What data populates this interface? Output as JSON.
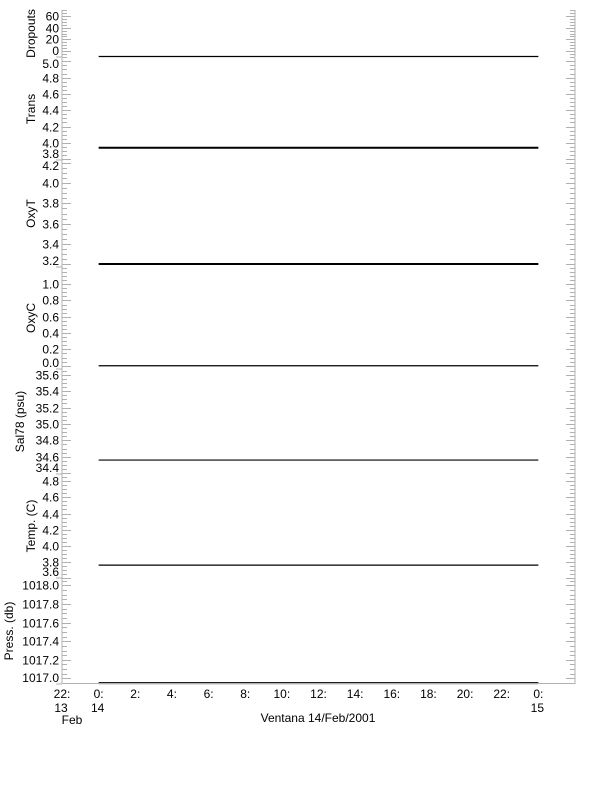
{
  "chart_data": {
    "type": "line",
    "title": "",
    "xlabel": "Ventana 14/Feb/2001",
    "x_range_hours": [
      -2,
      26
    ],
    "x_ticks": [
      {
        "h": -2,
        "label": "22:",
        "sub": "13",
        "sub2": "Feb"
      },
      {
        "h": 0,
        "label": "0:",
        "sub": "14"
      },
      {
        "h": 2,
        "label": "2:"
      },
      {
        "h": 4,
        "label": "4:"
      },
      {
        "h": 6,
        "label": "6:"
      },
      {
        "h": 8,
        "label": "8:"
      },
      {
        "h": 10,
        "label": "10:"
      },
      {
        "h": 12,
        "label": "12:"
      },
      {
        "h": 14,
        "label": "14:"
      },
      {
        "h": 16,
        "label": "16:"
      },
      {
        "h": 18,
        "label": "18:"
      },
      {
        "h": 20,
        "label": "20:"
      },
      {
        "h": 22,
        "label": "22:"
      },
      {
        "h": 24,
        "label": "0:",
        "sub": "15"
      }
    ],
    "panels": [
      {
        "ylabel": "Dropouts",
        "ylim": [
          -10,
          70
        ],
        "ticks": [
          0,
          20,
          40,
          60
        ],
        "labels": [
          "0",
          "20",
          "40",
          "60"
        ],
        "minor": 5,
        "x": [
          0,
          24
        ],
        "values": [
          -10,
          -10
        ],
        "thick": false
      },
      {
        "ylabel": "Trans",
        "ylim": [
          3.79,
          5.04
        ],
        "ticks": [
          3.8,
          4.0,
          4.2,
          4.4,
          4.6,
          4.8,
          5.0
        ],
        "labels": [
          "3.8",
          "4.0",
          "4.2",
          "4.4",
          "4.6",
          "4.8",
          "5.0"
        ],
        "minor": 0.05,
        "x": [
          0,
          24
        ],
        "values": [
          3.94,
          3.94
        ],
        "thick": true
      },
      {
        "ylabel": "OxyT",
        "ylim": [
          3.17,
          4.23
        ],
        "ticks": [
          3.2,
          3.4,
          3.6,
          3.8,
          4.0,
          4.2
        ],
        "labels": [
          "3.2",
          "3.4",
          "3.6",
          "3.8",
          "4.0",
          "4.2"
        ],
        "minor": 0.05,
        "x": [
          0,
          24
        ],
        "values": [
          3.2,
          3.2
        ],
        "thick": true
      },
      {
        "ylabel": "OxyC",
        "ylim": [
          -0.04,
          1.21
        ],
        "ticks": [
          0.0,
          0.2,
          0.4,
          0.6,
          0.8,
          1.0
        ],
        "labels": [
          "0.0",
          "0.2",
          "0.4",
          "0.6",
          "0.8",
          "1.0"
        ],
        "minor": 0.05,
        "x": [
          0,
          24
        ],
        "values": [
          0.0,
          0.0
        ],
        "thick": false
      },
      {
        "ylabel": "Sal78 (psu)",
        "ylim": [
          34.39,
          35.67
        ],
        "ticks": [
          34.4,
          34.6,
          34.8,
          35.0,
          35.2,
          35.4,
          35.6
        ],
        "labels": [
          "34.4",
          "34.6",
          "34.8",
          "35.0",
          "35.2",
          "35.4",
          "35.6"
        ],
        "minor": 0.05,
        "x": [
          0,
          24
        ],
        "values": [
          34.56,
          34.56
        ],
        "thick": false
      },
      {
        "ylabel": "Temp. (C)",
        "ylim": [
          3.6,
          4.89
        ],
        "ticks": [
          3.6,
          3.8,
          4.0,
          4.2,
          4.4,
          4.6,
          4.8
        ],
        "labels": [
          "3.6",
          "3.8",
          "4.0",
          "4.2",
          "4.4",
          "4.6",
          "4.8"
        ],
        "minor": 0.05,
        "x": [
          0,
          24
        ],
        "values": [
          3.76,
          3.76
        ],
        "thick": false
      },
      {
        "ylabel": "Press. (db)",
        "ylim": [
          1016.94,
          1018.08
        ],
        "ticks": [
          1017.0,
          1017.2,
          1017.4,
          1017.6,
          1017.8,
          1018.0
        ],
        "labels": [
          "1017.0",
          "1017.2",
          "1017.4",
          "1017.6",
          "1017.8",
          "1018.0"
        ],
        "minor": 0.05,
        "x": [
          0,
          24
        ],
        "values": [
          1016.95,
          1016.95
        ],
        "thick": true
      }
    ],
    "axis_color": "#b0b0b0",
    "line_color": "#000000",
    "grid": false
  }
}
